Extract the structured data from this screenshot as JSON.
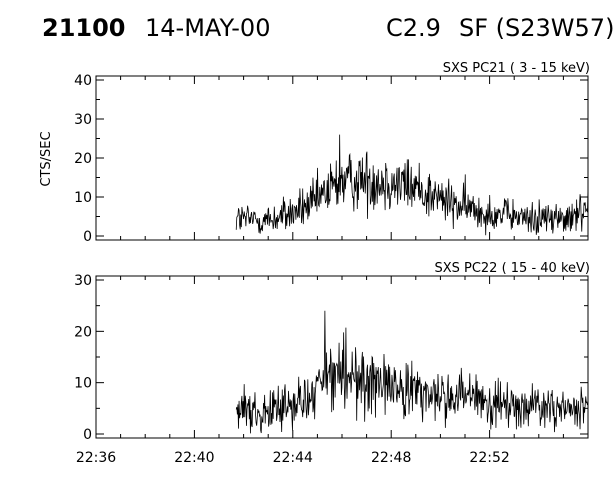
{
  "header": {
    "event_id": "21100",
    "date": "14-MAY-00",
    "goes_class": "C2.9",
    "location": "SF (S23W57)"
  },
  "chart_data": [
    {
      "type": "line",
      "title": "SXS PC21  (  3 - 15 keV)",
      "ylabel": "CTS/SEC",
      "ylim": [
        0,
        40
      ],
      "yticks": [
        0,
        10,
        20,
        30,
        40
      ],
      "xlim": [
        "22:36",
        "22:56"
      ],
      "xticks": [
        "22:36",
        "22:40",
        "22:44",
        "22:48",
        "22:52"
      ],
      "data_start": "22:41.7",
      "profile": {
        "times": [
          "22:41.7",
          "22:43.0",
          "22:43.8",
          "22:44.8",
          "22:45.8",
          "22:46.8",
          "22:48.0",
          "22:49.2",
          "22:50.5",
          "22:52.0",
          "22:53.5",
          "22:55.5",
          "22:56.0"
        ],
        "counts": [
          4.5,
          4.0,
          5.5,
          8.0,
          13.5,
          14.5,
          14.0,
          12.0,
          8.0,
          6.0,
          4.5,
          4.5,
          8.5
        ]
      },
      "peak": {
        "time": "22:45.9",
        "value": 26
      }
    },
    {
      "type": "line",
      "title": "SXS PC22  ( 15 - 40 keV)",
      "ylabel": "",
      "ylim": [
        0,
        30
      ],
      "yticks": [
        0,
        10,
        20,
        30
      ],
      "xlim": [
        "22:36",
        "22:56"
      ],
      "xticks": [
        "22:36",
        "22:40",
        "22:44",
        "22:48",
        "22:52"
      ],
      "data_start": "22:41.7",
      "profile": {
        "times": [
          "22:41.7",
          "22:43.0",
          "22:44.0",
          "22:44.9",
          "22:45.5",
          "22:46.5",
          "22:47.8",
          "22:49.2",
          "22:50.5",
          "22:52.0",
          "22:53.5",
          "22:55.5",
          "22:56.0"
        ],
        "counts": [
          4.5,
          5.0,
          5.0,
          7.5,
          12.0,
          10.5,
          10.0,
          8.0,
          7.0,
          6.0,
          5.5,
          4.5,
          6.0
        ]
      },
      "peak": {
        "time": "22:45.3",
        "value": 24
      }
    }
  ]
}
